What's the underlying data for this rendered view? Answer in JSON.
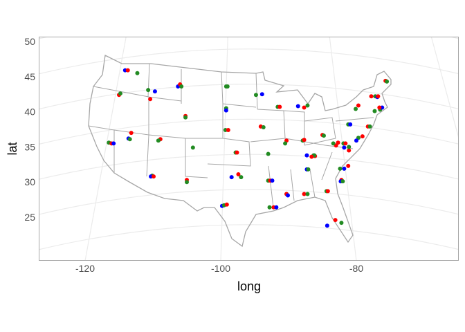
{
  "chart_data": {
    "type": "scatter",
    "xlabel": "long",
    "ylabel": "lat",
    "x_ticks": [
      -120,
      -100,
      -80
    ],
    "y_ticks": [
      25,
      30,
      35,
      40,
      45,
      50
    ],
    "grid": true,
    "projection": "conic (curved graticule)",
    "basemap": "US state outlines",
    "colors": {
      "r": "#FF0000",
      "b": "#0000FF",
      "g": "#228B22"
    },
    "points": [
      [
        -114.1,
        45.9,
        "b"
      ],
      [
        -113.7,
        45.9,
        "r"
      ],
      [
        -112.3,
        45.5,
        "g"
      ],
      [
        -115.0,
        42.4,
        "r"
      ],
      [
        -114.8,
        42.6,
        "g"
      ],
      [
        -110.7,
        43.1,
        "g"
      ],
      [
        -109.7,
        42.9,
        "b"
      ],
      [
        -110.4,
        41.8,
        "r"
      ],
      [
        -106.3,
        43.6,
        "b"
      ],
      [
        -106.0,
        43.9,
        "r"
      ],
      [
        -105.8,
        43.6,
        "g"
      ],
      [
        -99.2,
        43.6,
        "g"
      ],
      [
        -99.0,
        43.6,
        "g"
      ],
      [
        -94.8,
        42.4,
        "g"
      ],
      [
        -93.9,
        42.5,
        "b"
      ],
      [
        -91.6,
        40.7,
        "g"
      ],
      [
        -91.3,
        40.7,
        "r"
      ],
      [
        -88.6,
        40.8,
        "b"
      ],
      [
        -87.7,
        40.6,
        "r"
      ],
      [
        -87.2,
        40.9,
        "g"
      ],
      [
        -80.1,
        40.4,
        "g"
      ],
      [
        -79.7,
        40.9,
        "r"
      ],
      [
        -75.7,
        44.4,
        "r"
      ],
      [
        -75.5,
        44.3,
        "g"
      ],
      [
        -77.8,
        42.2,
        "r"
      ],
      [
        -77.2,
        42.2,
        "g"
      ],
      [
        -76.9,
        42.1,
        "b"
      ],
      [
        -76.8,
        42.2,
        "r"
      ],
      [
        -77.3,
        40.1,
        "g"
      ],
      [
        -76.5,
        40.3,
        "g"
      ],
      [
        -76.2,
        40.6,
        "b"
      ],
      [
        -76.6,
        40.6,
        "r"
      ],
      [
        -99.2,
        40.5,
        "g"
      ],
      [
        -99.2,
        40.2,
        "b"
      ],
      [
        -105.2,
        39.4,
        "r"
      ],
      [
        -105.2,
        39.2,
        "g"
      ],
      [
        -116.5,
        35.6,
        "g"
      ],
      [
        -116.1,
        35.5,
        "r"
      ],
      [
        -115.8,
        35.5,
        "b"
      ],
      [
        -113.2,
        37.0,
        "r"
      ],
      [
        -113.6,
        36.2,
        "b"
      ],
      [
        -113.4,
        36.1,
        "g"
      ],
      [
        -104.1,
        34.9,
        "g"
      ],
      [
        -99.3,
        37.4,
        "g"
      ],
      [
        -98.9,
        37.4,
        "r"
      ],
      [
        -94.1,
        37.9,
        "r"
      ],
      [
        -93.7,
        37.8,
        "g"
      ],
      [
        -90.3,
        35.9,
        "r"
      ],
      [
        -90.5,
        35.5,
        "g"
      ],
      [
        -87.9,
        35.9,
        "g"
      ],
      [
        -87.7,
        36.0,
        "r"
      ],
      [
        -85.0,
        36.7,
        "r"
      ],
      [
        -84.8,
        36.6,
        "g"
      ],
      [
        -81.2,
        38.2,
        "g"
      ],
      [
        -80.9,
        38.2,
        "b"
      ],
      [
        -78.3,
        37.9,
        "r"
      ],
      [
        -78.0,
        37.9,
        "g"
      ],
      [
        -79.1,
        36.5,
        "r"
      ],
      [
        -79.7,
        36.3,
        "g"
      ],
      [
        -80.0,
        35.9,
        "b"
      ],
      [
        -81.9,
        35.5,
        "g"
      ],
      [
        -82.7,
        35.6,
        "r"
      ],
      [
        -83.0,
        35.2,
        "r"
      ],
      [
        -83.4,
        35.5,
        "g"
      ],
      [
        -108.9,
        36.1,
        "r"
      ],
      [
        -109.2,
        35.9,
        "g"
      ],
      [
        -97.8,
        34.2,
        "g"
      ],
      [
        -97.6,
        34.2,
        "r"
      ],
      [
        -93.0,
        34.0,
        "g"
      ],
      [
        -86.1,
        33.7,
        "r"
      ],
      [
        -86.2,
        33.8,
        "g"
      ],
      [
        -86.3,
        33.8,
        "g"
      ],
      [
        -87.3,
        33.8,
        "b"
      ],
      [
        -86.6,
        33.6,
        "r"
      ],
      [
        -81.6,
        35.5,
        "r"
      ],
      [
        -81.8,
        34.9,
        "b"
      ],
      [
        -81.1,
        34.5,
        "r"
      ],
      [
        -81.1,
        35.0,
        "g"
      ],
      [
        -81.8,
        31.9,
        "b"
      ],
      [
        -81.2,
        32.3,
        "r"
      ],
      [
        -82.4,
        31.9,
        "g"
      ],
      [
        -110.1,
        30.9,
        "g"
      ],
      [
        -110.3,
        30.8,
        "b"
      ],
      [
        -109.9,
        30.8,
        "r"
      ],
      [
        -105.0,
        30.3,
        "r"
      ],
      [
        -105.0,
        30.0,
        "g"
      ],
      [
        -97.4,
        31.1,
        "r"
      ],
      [
        -97.0,
        30.7,
        "g"
      ],
      [
        -98.4,
        30.7,
        "b"
      ],
      [
        -93.0,
        30.2,
        "g"
      ],
      [
        -92.7,
        30.2,
        "r"
      ],
      [
        -92.4,
        30.2,
        "b"
      ],
      [
        -90.3,
        28.3,
        "g"
      ],
      [
        -90.3,
        28.3,
        "r"
      ],
      [
        -90.1,
        28.1,
        "b"
      ],
      [
        -87.3,
        31.8,
        "b"
      ],
      [
        -87.1,
        31.8,
        "g"
      ],
      [
        -84.4,
        28.7,
        "g"
      ],
      [
        -84.2,
        28.7,
        "r"
      ],
      [
        -82.2,
        30.3,
        "r"
      ],
      [
        -82.3,
        30.1,
        "b"
      ],
      [
        -82.0,
        30.1,
        "g"
      ],
      [
        -99.8,
        26.6,
        "b"
      ],
      [
        -99.5,
        26.7,
        "g"
      ],
      [
        -99.1,
        26.8,
        "r"
      ],
      [
        -92.8,
        26.4,
        "g"
      ],
      [
        -92.2,
        26.4,
        "r"
      ],
      [
        -91.8,
        26.4,
        "b"
      ],
      [
        -87.7,
        28.3,
        "r"
      ],
      [
        -87.2,
        28.3,
        "g"
      ],
      [
        -83.1,
        24.6,
        "r"
      ],
      [
        -84.3,
        23.8,
        "b"
      ],
      [
        -82.2,
        24.2,
        "g"
      ]
    ]
  }
}
